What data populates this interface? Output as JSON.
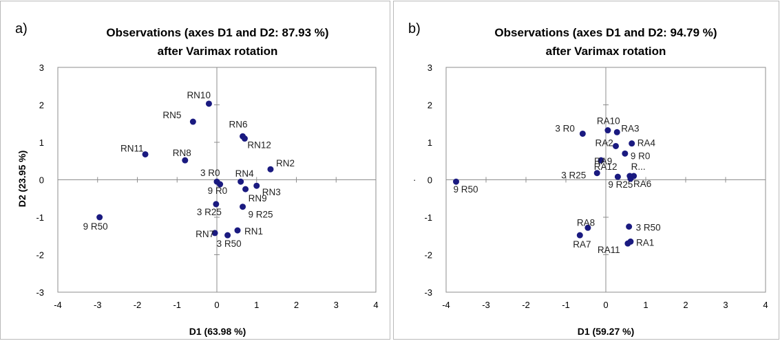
{
  "chart_data": [
    {
      "type": "scatter",
      "panel_letter": "a)",
      "title": [
        "Observations (axes D1 and D2: 87.93 %)",
        "after Varimax rotation"
      ],
      "xlabel": "D1 (63.98 %)",
      "ylabel": "D2 (23.95 %)",
      "xlim": [
        -4,
        4
      ],
      "ylim": [
        -3,
        3
      ],
      "xticks": [
        -4,
        -3,
        -2,
        -1,
        0,
        1,
        2,
        3,
        4
      ],
      "yticks": [
        -3,
        -2,
        -1,
        0,
        1,
        2,
        3
      ],
      "grid": false,
      "marker_color": "#1a1a80",
      "points": [
        {
          "x": -0.2,
          "y": 2.03,
          "label": "RN10"
        },
        {
          "x": -0.6,
          "y": 1.55,
          "label": "RN5"
        },
        {
          "x": 0.65,
          "y": 1.16,
          "label": "RN6"
        },
        {
          "x": 0.7,
          "y": 1.1,
          "label": "RN12"
        },
        {
          "x": -1.8,
          "y": 0.68,
          "label": "RN11"
        },
        {
          "x": -0.8,
          "y": 0.52,
          "label": "RN8"
        },
        {
          "x": 1.35,
          "y": 0.28,
          "label": "RN2"
        },
        {
          "x": 0.6,
          "y": -0.05,
          "label": "RN4"
        },
        {
          "x": 1.0,
          "y": -0.16,
          "label": "RN3"
        },
        {
          "x": 0.72,
          "y": -0.25,
          "label": "RN9"
        },
        {
          "x": 0.0,
          "y": -0.05,
          "label": "3 R0"
        },
        {
          "x": 0.08,
          "y": -0.12,
          "label": "9 R0"
        },
        {
          "x": -0.02,
          "y": -0.65,
          "label": "3 R25"
        },
        {
          "x": 0.65,
          "y": -0.72,
          "label": "9 R25"
        },
        {
          "x": -2.95,
          "y": -1.0,
          "label": "9 R50"
        },
        {
          "x": 0.52,
          "y": -1.35,
          "label": "RN1"
        },
        {
          "x": -0.05,
          "y": -1.42,
          "label": "RN7"
        },
        {
          "x": 0.27,
          "y": -1.48,
          "label": "3 R50"
        }
      ]
    },
    {
      "type": "scatter",
      "panel_letter": "b)",
      "title": [
        "Observations (axes D1 and D2: 94.79 %)",
        "after Varimax rotation"
      ],
      "xlabel": "D1 (59.27 %)",
      "ylabel": "",
      "xlim": [
        -4,
        4
      ],
      "ylim": [
        -3,
        3
      ],
      "xticks": [
        -4,
        -3,
        -2,
        -1,
        0,
        1,
        2,
        3,
        4
      ],
      "yticks": [
        -3,
        -2,
        -1,
        0,
        1,
        2,
        3
      ],
      "grid": false,
      "marker_color": "#1a1a80",
      "points": [
        {
          "x": 0.05,
          "y": 1.32,
          "label": "RA10"
        },
        {
          "x": 0.28,
          "y": 1.27,
          "label": "RA3"
        },
        {
          "x": -0.58,
          "y": 1.23,
          "label": "3 R0"
        },
        {
          "x": 0.65,
          "y": 0.97,
          "label": "RA4"
        },
        {
          "x": 0.25,
          "y": 0.9,
          "label": "RA2"
        },
        {
          "x": 0.48,
          "y": 0.7,
          "label": "9 R0"
        },
        {
          "x": -0.12,
          "y": 0.52,
          "label": "RA9"
        },
        {
          "x": -0.22,
          "y": 0.18,
          "label": "3 R25"
        },
        {
          "x": 0.6,
          "y": 0.1,
          "label": "RA12"
        },
        {
          "x": 0.7,
          "y": 0.1,
          "label": "R..."
        },
        {
          "x": 0.3,
          "y": 0.08,
          "label": "9 R25"
        },
        {
          "x": 0.62,
          "y": 0.03,
          "label": "RA6"
        },
        {
          "x": -3.75,
          "y": -0.05,
          "label": "9 R50"
        },
        {
          "x": 0.58,
          "y": -1.25,
          "label": "3 R50"
        },
        {
          "x": -0.45,
          "y": -1.28,
          "label": "RA8"
        },
        {
          "x": -0.65,
          "y": -1.48,
          "label": "RA7"
        },
        {
          "x": 0.62,
          "y": -1.65,
          "label": "RA1"
        },
        {
          "x": 0.55,
          "y": -1.7,
          "label": "RA11"
        }
      ]
    }
  ],
  "stray_marks": [
    "·"
  ]
}
